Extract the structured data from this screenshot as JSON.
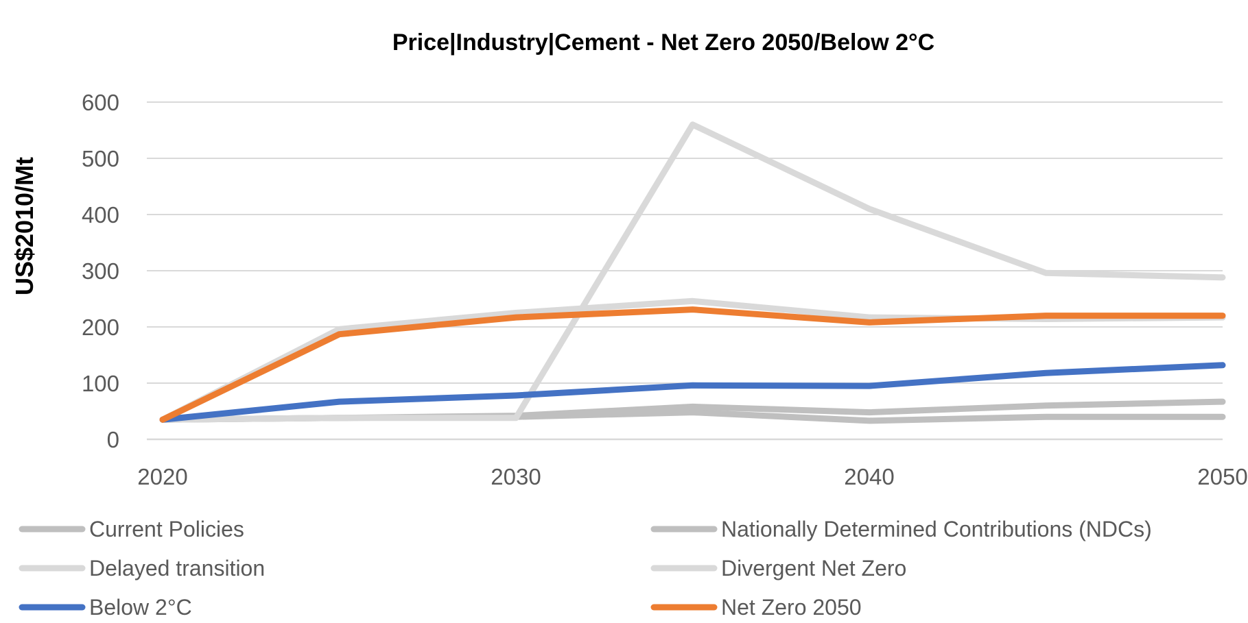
{
  "chart_data": {
    "type": "line",
    "title": "Price|Industry|Cement - Net Zero 2050/Below 2°C",
    "xlabel": "",
    "ylabel": "US$2010/Mt",
    "x": [
      2020,
      2025,
      2030,
      2035,
      2040,
      2045,
      2050
    ],
    "xticks": [
      "2020",
      "2030",
      "2040",
      "2050"
    ],
    "yticks": [
      "0",
      "100",
      "200",
      "300",
      "400",
      "500",
      "600"
    ],
    "xlim": [
      2020,
      2050
    ],
    "ylim": [
      0,
      600
    ],
    "grid": true,
    "legend_position": "bottom",
    "series": [
      {
        "name": "Current Policies",
        "color": "#bfbfbf",
        "values": [
          35,
          38,
          40,
          48,
          33,
          40,
          40
        ]
      },
      {
        "name": "Nationally Determined Contributions (NDCs)",
        "color": "#bfbfbf",
        "values": [
          35,
          38,
          42,
          58,
          48,
          60,
          67
        ]
      },
      {
        "name": "Delayed transition",
        "color": "#d9d9d9",
        "values": [
          35,
          38,
          38,
          560,
          410,
          296,
          288
        ]
      },
      {
        "name": "Divergent Net Zero",
        "color": "#d9d9d9",
        "values": [
          35,
          196,
          225,
          246,
          217,
          214,
          217
        ]
      },
      {
        "name": "Below 2°C",
        "color": "#4472c4",
        "values": [
          35,
          67,
          78,
          96,
          95,
          118,
          132
        ]
      },
      {
        "name": "Net Zero 2050",
        "color": "#ed7d31",
        "values": [
          35,
          187,
          217,
          231,
          208,
          220,
          220
        ]
      }
    ]
  }
}
